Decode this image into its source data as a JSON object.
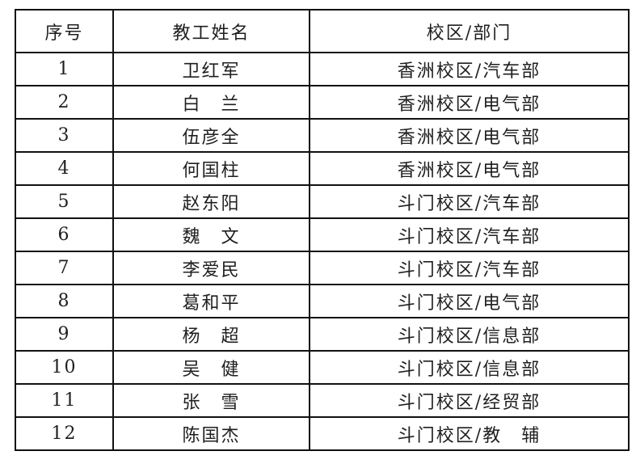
{
  "table": {
    "headers": [
      "序号",
      "教工姓名",
      "校区/部门"
    ],
    "rows": [
      {
        "no": "1",
        "name": "卫红军",
        "campus_dept": "香洲校区/汽车部"
      },
      {
        "no": "2",
        "name": "白　兰",
        "campus_dept": "香洲校区/电气部"
      },
      {
        "no": "3",
        "name": "伍彦全",
        "campus_dept": "香洲校区/电气部"
      },
      {
        "no": "4",
        "name": "何国柱",
        "campus_dept": "香洲校区/电气部"
      },
      {
        "no": "5",
        "name": "赵东阳",
        "campus_dept": "斗门校区/汽车部"
      },
      {
        "no": "6",
        "name": "魏　文",
        "campus_dept": "斗门校区/汽车部"
      },
      {
        "no": "7",
        "name": "李爱民",
        "campus_dept": "斗门校区/汽车部"
      },
      {
        "no": "8",
        "name": "葛和平",
        "campus_dept": "斗门校区/电气部"
      },
      {
        "no": "9",
        "name": "杨　超",
        "campus_dept": "斗门校区/信息部"
      },
      {
        "no": "10",
        "name": "吴　健",
        "campus_dept": "斗门校区/信息部"
      },
      {
        "no": "11",
        "name": "张　雪",
        "campus_dept": "斗门校区/经贸部"
      },
      {
        "no": "12",
        "name": "陈国杰",
        "campus_dept": "斗门校区/教　辅"
      }
    ],
    "colors": {
      "border": "#111111",
      "text": "#1f1f1f",
      "background": "#ffffff"
    }
  }
}
